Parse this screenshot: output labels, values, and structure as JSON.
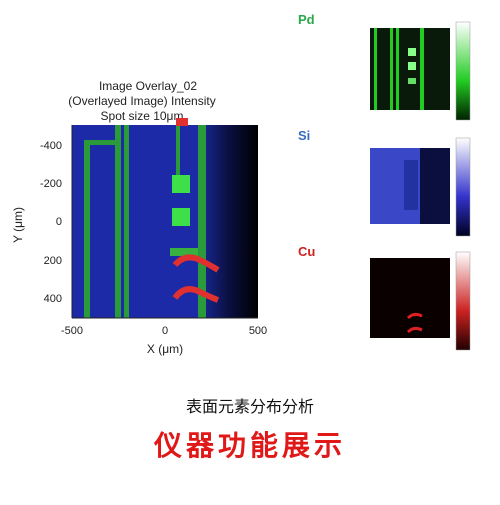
{
  "main": {
    "title_lines": [
      "Image Overlay_02",
      "(Overlayed Image)   Intensity",
      "Spot size 10μm"
    ],
    "x_label": "X (μm)",
    "y_label": "Y (μm)",
    "x_ticks": [
      "-500",
      "0",
      "500"
    ],
    "y_ticks": [
      "-400",
      "-200",
      "0",
      "200",
      "400"
    ]
  },
  "elements": [
    "Pd",
    "Si",
    "Cu"
  ],
  "caption": "表面元素分布分析",
  "headline": "仪器功能展示"
}
